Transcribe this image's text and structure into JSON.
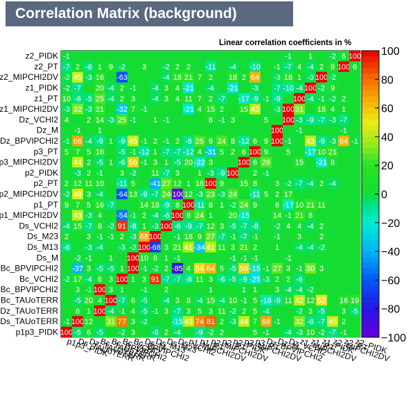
{
  "title": "Correlation Matrix (background)",
  "chart_data": {
    "type": "heatmap",
    "title": "Linear correlation coefficients in %",
    "zlim": [
      -100,
      100
    ],
    "colorbar_ticks": [
      "100",
      "80",
      "60",
      "40",
      "20",
      "0",
      "−20",
      "−40",
      "−60",
      "−80",
      "−100"
    ],
    "row_labels_top_to_bottom": [
      "z2_PIDK",
      "z2_PT",
      "z2_MIPCHI2DV",
      "z1_PIDK",
      "z1_PT",
      "z1_MIPCHI2DV",
      "Dz_VCHI2",
      "Dz_M",
      "Dz_BPVIPCHI2",
      "p3_PT",
      "p3_MIPCHI2DV",
      "p2_PIDK",
      "p2_PT",
      "p2_MIPCHI2DV",
      "p1_PT",
      "p1_MIPCHI2DV",
      "Ds_VCHI2",
      "Ds_M23",
      "Ds_M13",
      "Ds_M",
      "Bc_BPVIPCHI2",
      "Bc_VCHI2",
      "Bc_BPVIPCHI2",
      "Bc_TAUoTERR",
      "Dz_TAUoTERR",
      "Ds_TAUoTERR",
      "p1p3_PIDK"
    ],
    "column_labels_left_to_right": [
      "p1p3_PIDK",
      "Ds_TAUoTERR",
      "Dz_TAUoTERR",
      "Bc_TAUoTERR",
      "Bc_BPVIPCHI2",
      "Bc_VCHI2",
      "Bc_BPVIPCHI2",
      "Ds_M",
      "Ds_M13",
      "Ds_M23",
      "Ds_VCHI2",
      "p1_MIPCHI2DV",
      "p1_PT",
      "p2_MIPCHI2DV",
      "p2_PT",
      "p2_PIDK",
      "p3_MIPCHI2DV",
      "p3_PT",
      "Dz_BPVIPCHI2",
      "Dz_M",
      "Dz_VCHI2",
      "z1_MIPCHI2DV",
      "z1_PT",
      "z1_PIDK",
      "z2_MIPCHI2DV",
      "z2_PT",
      "z2_PIDK"
    ],
    "values_rows_top_to_bottom": [
      [
        -1,
        0,
        0,
        0,
        0,
        0,
        0,
        0,
        0,
        0,
        0,
        0,
        0,
        0,
        0,
        0,
        0,
        0,
        0,
        0,
        -1,
        0,
        1,
        0,
        -2,
        6,
        100
      ],
      [
        -7,
        2,
        -6,
        1,
        9,
        -2,
        0,
        3,
        0,
        -2,
        2,
        2,
        0,
        -11,
        0,
        -4,
        0,
        -10,
        0,
        -1,
        -7,
        4,
        -4,
        2,
        9,
        100,
        6
      ],
      [
        -2,
        45,
        -3,
        16,
        0,
        -63,
        0,
        0,
        0,
        -4,
        18,
        21,
        7,
        2,
        0,
        18,
        2,
        64,
        0,
        -3,
        18,
        1,
        -3,
        100,
        -2,
        0,
        0
      ],
      [
        -2,
        -7,
        0,
        20,
        -4,
        2,
        -1,
        0,
        -4,
        3,
        4,
        -21,
        0,
        -4,
        0,
        -21,
        0,
        -3,
        0,
        -7,
        -10,
        -4,
        100,
        -2,
        9,
        0,
        0
      ],
      [
        10,
        -6,
        -5,
        25,
        -4,
        2,
        3,
        0,
        -4,
        3,
        4,
        11,
        7,
        2,
        -7,
        0,
        -17,
        -9,
        -1,
        -9,
        0,
        100,
        -4,
        -1,
        -2,
        2,
        0
      ],
      [
        -3,
        32,
        -3,
        21,
        0,
        -32,
        7,
        -1,
        0,
        0,
        0,
        -21,
        4,
        15,
        2,
        0,
        15,
        43,
        0,
        -3,
        100,
        31,
        0,
        18,
        4,
        1,
        0
      ],
      [
        4,
        0,
        2,
        14,
        -3,
        25,
        -1,
        0,
        1,
        -1,
        0,
        0,
        0,
        6,
        -1,
        3,
        0,
        0,
        5,
        0,
        100,
        -3,
        -9,
        -7,
        -3,
        -7,
        0
      ],
      [
        0,
        -1,
        0,
        1,
        0,
        0,
        0,
        0,
        0,
        0,
        0,
        0,
        0,
        0,
        0,
        0,
        0,
        0,
        0,
        100,
        0,
        -1,
        0,
        0,
        0,
        -1,
        0
      ],
      [
        -1,
        68,
        -4,
        -9,
        1,
        -9,
        45,
        -1,
        2,
        -1,
        2,
        -8,
        25,
        9,
        24,
        8,
        -12,
        6,
        9,
        100,
        -1,
        0,
        43,
        -9,
        -3,
        64,
        -1
      ],
      [
        5,
        7,
        5,
        16,
        0,
        -5,
        -1,
        -12,
        1,
        -7,
        -7,
        -12,
        4,
        -31,
        5,
        2,
        6,
        100,
        9,
        0,
        5,
        0,
        -17,
        10,
        21,
        0,
        0
      ],
      [
        0,
        44,
        2,
        -5,
        1,
        -6,
        56,
        -1,
        3,
        1,
        -5,
        20,
        -22,
        3,
        0,
        0,
        100,
        6,
        26,
        0,
        0,
        15,
        0,
        -21,
        8,
        0,
        0
      ],
      [
        0,
        -3,
        2,
        -1,
        0,
        3,
        -2,
        0,
        11,
        -7,
        3,
        0,
        1,
        -3,
        -9,
        100,
        0,
        2,
        -1,
        0,
        0,
        0,
        0,
        0,
        0,
        0,
        0
      ],
      [
        2,
        12,
        11,
        10,
        0,
        -11,
        5,
        0,
        -41,
        27,
        12,
        1,
        18,
        100,
        9,
        0,
        15,
        8,
        0,
        3,
        -2,
        -7,
        -4,
        2,
        -4,
        0,
        0
      ],
      [
        -2,
        48,
        3,
        -4,
        0,
        -64,
        13,
        -9,
        -7,
        24,
        -100,
        12,
        -3,
        23,
        -3,
        24,
        0,
        -11,
        5,
        2,
        17,
        0,
        0,
        0,
        0,
        0,
        0
      ],
      [
        9,
        7,
        5,
        16,
        -7,
        0,
        0,
        14,
        18,
        -9,
        8,
        100,
        -11,
        8,
        1,
        -2,
        24,
        9,
        0,
        6,
        -17,
        10,
        21,
        11,
        0,
        0,
        0
      ],
      [
        0,
        43,
        -3,
        4,
        0,
        -54,
        -1,
        2,
        -4,
        -6,
        100,
        8,
        24,
        1,
        0,
        20,
        -15,
        0,
        0,
        14,
        -1,
        21,
        8,
        0,
        0,
        0,
        0
      ],
      [
        -4,
        15,
        -7,
        8,
        -2,
        91,
        -8,
        1,
        -3,
        100,
        -6,
        -9,
        -7,
        12,
        3,
        -5,
        -7,
        -8,
        0,
        -2,
        4,
        4,
        -4,
        2,
        0,
        0,
        0
      ],
      [
        2,
        0,
        3,
        -1,
        -1,
        2,
        -3,
        68,
        100,
        0,
        -1,
        18,
        9,
        27,
        -7,
        -1,
        -7,
        -1,
        0,
        -1,
        0,
        3,
        0,
        2,
        0,
        0,
        0
      ],
      [
        -6,
        0,
        -3,
        -4,
        0,
        -3,
        -2,
        100,
        -68,
        3,
        21,
        41,
        -34,
        41,
        11,
        3,
        21,
        2,
        0,
        1,
        0,
        -4,
        -4,
        -2,
        0,
        0,
        0
      ],
      [
        0,
        -2,
        -1,
        0,
        1,
        0,
        100,
        10,
        8,
        1,
        -1,
        0,
        0,
        0,
        0,
        -1,
        -1,
        -1,
        0,
        0,
        -1,
        0,
        0,
        0,
        0,
        0,
        0
      ],
      [
        0,
        -37,
        3,
        -5,
        -5,
        1,
        100,
        -1,
        -2,
        2,
        -85,
        4,
        54,
        64,
        5,
        -5,
        56,
        -15,
        -1,
        27,
        3,
        -1,
        30,
        3,
        0,
        0,
        0
      ],
      [
        -2,
        17,
        -4,
        6,
        3,
        100,
        1,
        3,
        91,
        -7,
        -7,
        -8,
        11,
        3,
        -6,
        -5,
        -9,
        -25,
        -3,
        2,
        2,
        -6,
        0,
        0,
        0,
        0,
        0
      ],
      [
        0,
        3,
        -1,
        100,
        3,
        1,
        0,
        -1,
        0,
        2,
        0,
        0,
        0,
        1,
        0,
        0,
        1,
        1,
        0,
        3,
        -4,
        -4,
        -2,
        0,
        0,
        0,
        0
      ],
      [
        0,
        -5,
        20,
        4,
        100,
        -7,
        6,
        -5,
        0,
        -4,
        3,
        8,
        -4,
        15,
        -4,
        10,
        -1,
        5,
        -16,
        -9,
        11,
        42,
        12,
        52,
        0,
        16,
        19
      ],
      [
        0,
        6,
        1,
        100,
        -4,
        -1,
        4,
        -5,
        -1,
        3,
        -7,
        3,
        5,
        3,
        11,
        -2,
        2,
        5,
        -4,
        0,
        0,
        -2,
        3,
        -5,
        0,
        3,
        -5
      ],
      [
        -1,
        100,
        12,
        0,
        31,
        77,
        3,
        -2,
        0,
        0,
        -15,
        43,
        74,
        81,
        2,
        -3,
        44,
        7,
        68,
        -1,
        0,
        32,
        -6,
        -7,
        45,
        2,
        0
      ],
      [
        100,
        -5,
        6,
        -5,
        0,
        -2,
        3,
        0,
        -6,
        2,
        -4,
        0,
        -9,
        -2,
        2,
        0,
        0,
        5,
        -1,
        0,
        -4,
        -3,
        10,
        -2,
        -7,
        -1,
        0
      ]
    ]
  }
}
